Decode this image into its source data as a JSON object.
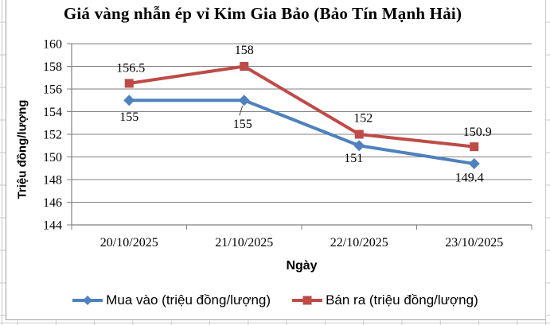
{
  "chart_data": {
    "type": "line",
    "title": "Giá vàng nhẫn ép vỉ Kim Gia Bảo (Bảo Tín Mạnh Hải)",
    "xlabel": "Ngày",
    "ylabel": "Triệu đồng/lượng",
    "x": [
      "20/10/2025",
      "21/10/2025",
      "22/10/2025",
      "23/10/2025"
    ],
    "ylim": [
      144,
      160
    ],
    "ytick_step": 2,
    "grid": true,
    "legend_position": "bottom",
    "series": [
      {
        "name": "Mua vào (triệu đồng/lượng)",
        "values": [
          155,
          155,
          151,
          149.4
        ],
        "labels": [
          "155",
          "155",
          "151",
          "149.4"
        ],
        "color": "#4F81BD",
        "marker": "diamond",
        "label_offsets": [
          [
            0,
            20
          ],
          [
            -2,
            29
          ],
          [
            -7,
            15
          ],
          [
            -6,
            17
          ]
        ],
        "leader_at": [
          1
        ]
      },
      {
        "name": "Bán ra (triệu đồng/lượng)",
        "values": [
          156.5,
          158,
          152,
          150.9
        ],
        "labels": [
          "156.5",
          "158",
          "152",
          "150.9"
        ],
        "color": "#BE4B48",
        "marker": "square",
        "label_offsets": [
          [
            2,
            -20
          ],
          [
            0,
            -21
          ],
          [
            5,
            -21
          ],
          [
            4,
            -19
          ]
        ],
        "leader_at": []
      }
    ]
  },
  "colors": {
    "background": "#FFFFFF",
    "gridline": "#828282",
    "axis": "#808080",
    "tick": "#808080",
    "label_text": "#000000",
    "leader_line": "#404040",
    "chart_border": "#9E9E9E",
    "sheet_gridline": "#C9C9C9"
  }
}
